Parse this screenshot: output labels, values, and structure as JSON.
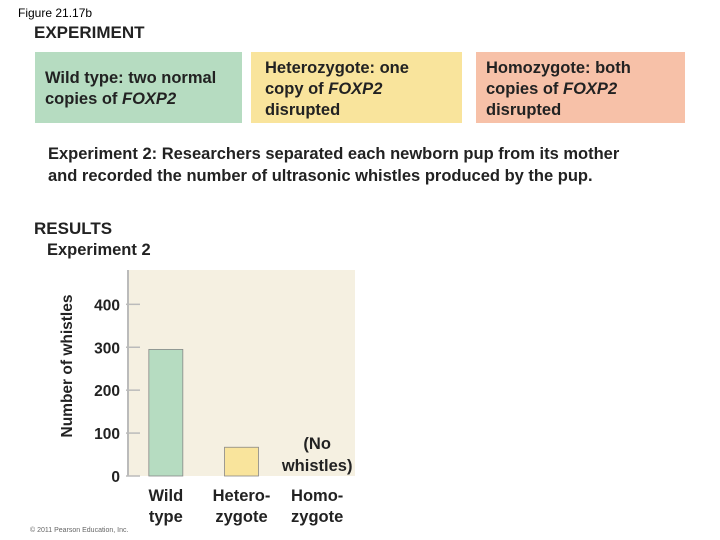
{
  "figure_label": "Figure 21.17b",
  "heading": "EXPERIMENT",
  "boxes": [
    {
      "before": "Wild type: two normal copies of ",
      "gene": "FOXP2",
      "after": ""
    },
    {
      "before": "Heterozygote: one copy of ",
      "gene": "FOXP2",
      "after": " disrupted"
    },
    {
      "before": "Homozygote: both copies of ",
      "gene": "FOXP2",
      "after": " disrupted"
    }
  ],
  "description": "Experiment 2: Researchers separated each newborn pup from its mother\nand recorded the number of ultrasonic whistles produced by the pup.",
  "results_heading": "RESULTS",
  "copyright": "© 2011 Pearson Education, Inc.",
  "chart_data": {
    "type": "bar",
    "title": "Experiment 2",
    "y_label": "Number of whistles",
    "categories": [
      "Wild\ntype",
      "Hetero-\nzygote",
      "Homo-\nzygote"
    ],
    "values": [
      295,
      67,
      0
    ],
    "colors": [
      "#b6dcc1",
      "#f9e49c",
      "#f7c1a8"
    ],
    "annotation": "(No\nwhistles)",
    "ylim": [
      0,
      480
    ],
    "yticks": [
      0,
      100,
      200,
      300,
      400
    ]
  }
}
